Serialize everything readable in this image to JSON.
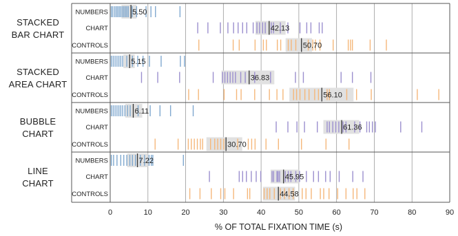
{
  "chart_data": {
    "type": "strip",
    "xlabel": "% OF TOTAL FIXATION TIME (s)",
    "xlim": [
      0,
      90
    ],
    "xticks": [
      0,
      10,
      20,
      30,
      40,
      50,
      60,
      70,
      80,
      90
    ],
    "grid": true,
    "colors": {
      "NUMBERS": "#7fa8cf",
      "CHART": "#9b8fce",
      "CONTROLS": "#f5b77a",
      "box": "#e1e1e1",
      "median": "#333333",
      "frame": "#555555",
      "grid": "#999999"
    },
    "groups": [
      {
        "name_lines": [
          "STACKED",
          "BAR CHART"
        ],
        "rows": [
          {
            "label": "NUMBERS",
            "median": 5.5,
            "median_label": "5.50",
            "box": [
              3.0,
              7.0
            ],
            "ticks": [
              0.3,
              0.7,
              1.2,
              1.6,
              2.0,
              2.4,
              2.8,
              3.2,
              3.6,
              4.0,
              4.4,
              4.8,
              5.8,
              7.0,
              9.5,
              10.8,
              12.0,
              18.5
            ]
          },
          {
            "label": "CHART",
            "median": 42.13,
            "median_label": "42.13",
            "box": [
              38.5,
              46.5
            ],
            "ticks": [
              23.2,
              25.9,
              29.2,
              31.2,
              32.7,
              33.9,
              35.1,
              36.2,
              37.9,
              38.9,
              39.6,
              40.4,
              41.1,
              42.7,
              43.3,
              45.1,
              47.1,
              50.3,
              52.1,
              53.2,
              55.4,
              56.2
            ]
          },
          {
            "label": "CONTROLS",
            "median": 50.7,
            "median_label": "50.70",
            "box": [
              46.5,
              53.5
            ],
            "ticks": [
              23.5,
              32.6,
              34.2,
              38.4,
              40.6,
              41.4,
              44.3,
              45.2,
              47.2,
              48.0,
              49.2,
              52.5,
              53.7,
              54.4,
              55.6,
              59.1,
              63.1,
              63.7,
              64.2,
              68.9,
              73.2
            ]
          }
        ]
      },
      {
        "name_lines": [
          "STACKED",
          "AREA CHART"
        ],
        "rows": [
          {
            "label": "NUMBERS",
            "median": 5.15,
            "median_label": "5.15",
            "box": [
              3.5,
              6.5
            ],
            "ticks": [
              0.3,
              0.8,
              1.3,
              1.8,
              2.3,
              2.8,
              3.3,
              4.4,
              5.9,
              7.3,
              8.7,
              10.4,
              13.5,
              18.6,
              19.7
            ]
          },
          {
            "label": "CHART",
            "median": 36.83,
            "median_label": "36.83",
            "box": [
              29.5,
              43.5
            ],
            "ticks": [
              8.3,
              12.6,
              18.4,
              27.3,
              29.8,
              30.4,
              31.1,
              31.8,
              32.5,
              33.2,
              34.6,
              35.8,
              38.3,
              42.5,
              49.1,
              51.2,
              61.2,
              64.2,
              69.1
            ]
          },
          {
            "label": "CONTROLS",
            "median": 56.1,
            "median_label": "56.10",
            "box": [
              47.5,
              64.5
            ],
            "ticks": [
              20.8,
              23.4,
              30.2,
              33.5,
              34.7,
              38.3,
              42.2,
              44.2,
              45.8,
              48.6,
              49.4,
              50.3,
              51.6,
              52.7,
              54.2,
              55.2,
              57.5,
              58.1,
              62.7,
              65.3,
              69.2,
              81.4,
              87.1
            ]
          }
        ]
      },
      {
        "name_lines": [
          "BUBBLE",
          "CHART"
        ],
        "rows": [
          {
            "label": "NUMBERS",
            "median": 6.11,
            "median_label": "6.11",
            "box": [
              4.0,
              8.5
            ],
            "ticks": [
              0.3,
              0.8,
              1.3,
              1.8,
              2.3,
              2.8,
              3.3,
              3.9,
              4.6,
              5.3,
              7.4,
              10.6,
              13.2,
              16.0,
              22.0
            ]
          },
          {
            "label": "CHART",
            "median": 61.36,
            "median_label": "61.36",
            "box": [
              56.5,
              66.0
            ],
            "ticks": [
              44.0,
              47.1,
              49.5,
              51.5,
              54.9,
              57.5,
              58.1,
              59.0,
              59.8,
              60.6,
              61.7,
              62.5,
              64.8,
              66.2,
              68.0,
              68.7,
              69.5,
              70.3,
              77.0,
              82.6
            ]
          },
          {
            "label": "CONTROLS",
            "median": 30.7,
            "median_label": "30.70",
            "box": [
              25.5,
              35.0
            ],
            "ticks": [
              11.9,
              18.0,
              20.7,
              21.5,
              22.3,
              23.1,
              23.9,
              24.5,
              26.6,
              27.7,
              28.5,
              29.3,
              30.1,
              33.8,
              36.6,
              37.5,
              38.4,
              41.3,
              44.6,
              50.7,
              57.2,
              63.3
            ]
          }
        ]
      },
      {
        "name_lines": [
          "LINE",
          "CHART"
        ],
        "rows": [
          {
            "label": "NUMBERS",
            "median": 7.22,
            "median_label": "7.22",
            "box": [
              4.5,
              10.0
            ],
            "ticks": [
              0.3,
              0.9,
              1.8,
              2.8,
              3.6,
              4.4,
              5.2,
              5.9,
              6.7,
              8.0,
              9.1,
              10.3,
              10.9,
              11.3,
              19.4
            ]
          },
          {
            "label": "CHART",
            "median": 45.95,
            "median_label": "45.95",
            "box": [
              42.5,
              50.0
            ],
            "ticks": [
              26.3,
              34.2,
              35.1,
              36.1,
              37.4,
              38.7,
              39.9,
              42.9,
              43.3,
              44.2,
              44.5,
              44.9,
              46.4,
              47.2,
              47.9,
              49.2,
              50.2,
              52.0,
              53.9,
              55.2,
              57.1,
              58.3,
              60.7,
              64.3,
              67.0
            ]
          },
          {
            "label": "CONTROLS",
            "median": 44.58,
            "median_label": "44.58",
            "box": [
              40.5,
              49.0
            ],
            "ticks": [
              21.1,
              23.8,
              26.8,
              29.3,
              30.4,
              32.7,
              36.4,
              37.0,
              40.8,
              41.6,
              42.3,
              43.5,
              45.1,
              46.2,
              47.4,
              48.5,
              50.9,
              51.9,
              53.3,
              55.7,
              56.6,
              58.0,
              60.3,
              62.5,
              64.4,
              65.4,
              67.5
            ]
          }
        ]
      }
    ]
  }
}
